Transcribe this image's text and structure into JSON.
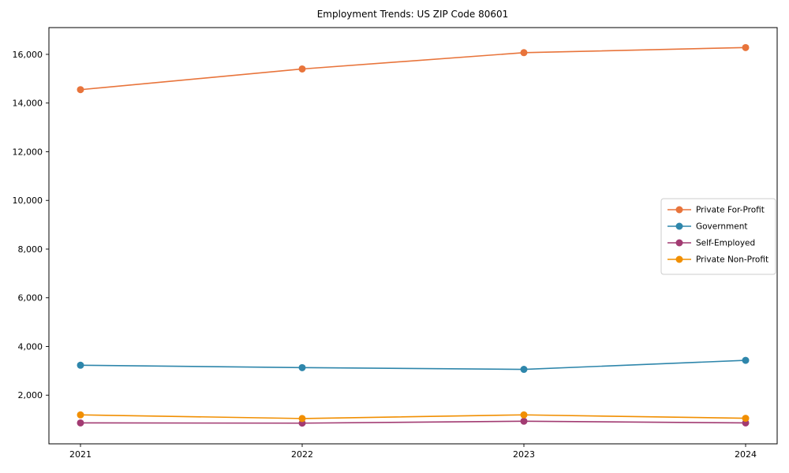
{
  "chart_data": {
    "type": "line",
    "title": "Employment Trends: US ZIP Code 80601",
    "x": [
      "2021",
      "2022",
      "2023",
      "2024"
    ],
    "series": [
      {
        "name": "Private For-Profit",
        "color": "#e8743b",
        "values": [
          14550,
          15400,
          16070,
          16280
        ]
      },
      {
        "name": "Government",
        "color": "#2e86ab",
        "values": [
          3230,
          3130,
          3060,
          3430
        ]
      },
      {
        "name": "Self-Employed",
        "color": "#a23b72",
        "values": [
          860,
          850,
          930,
          860
        ]
      },
      {
        "name": "Private Non-Profit",
        "color": "#f18f01",
        "values": [
          1190,
          1040,
          1190,
          1050
        ]
      }
    ],
    "yticks": [
      2000,
      4000,
      6000,
      8000,
      10000,
      12000,
      14000,
      16000
    ],
    "ylim": [
      0,
      17100
    ],
    "grid": false,
    "legend_position": "center right",
    "marker": "circle",
    "frame_color": "#000000",
    "legend_border_color": "#cccccc"
  }
}
